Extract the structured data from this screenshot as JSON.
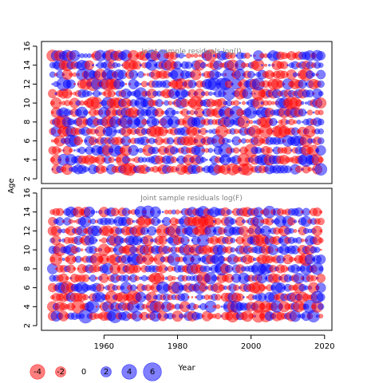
{
  "chart_data": {
    "type": "scatter",
    "subtype": "bubble-residuals",
    "ylabel": "Age",
    "xlabel": "Year",
    "xlim": [
      1943,
      2022
    ],
    "ylim": [
      1.5,
      16.5
    ],
    "x_ticks": [
      1960,
      1980,
      2000,
      2020
    ],
    "y_ticks": [
      2,
      4,
      6,
      8,
      10,
      12,
      14,
      16
    ],
    "colors": {
      "negative": "#ff0000",
      "positive": "#0000ff"
    },
    "panels": [
      {
        "title": "Joint sample residuals log(I)",
        "years": [
          1946,
          2019
        ],
        "ages": [
          3,
          15
        ],
        "seed": 17
      },
      {
        "title": "Joint sample residuals log(F)",
        "years": [
          1946,
          2019
        ],
        "ages": [
          3,
          14
        ],
        "seed": 91
      }
    ],
    "legend": {
      "values": [
        "-4",
        "-2",
        "0",
        "2",
        "4",
        "6"
      ],
      "title": "Year"
    }
  }
}
